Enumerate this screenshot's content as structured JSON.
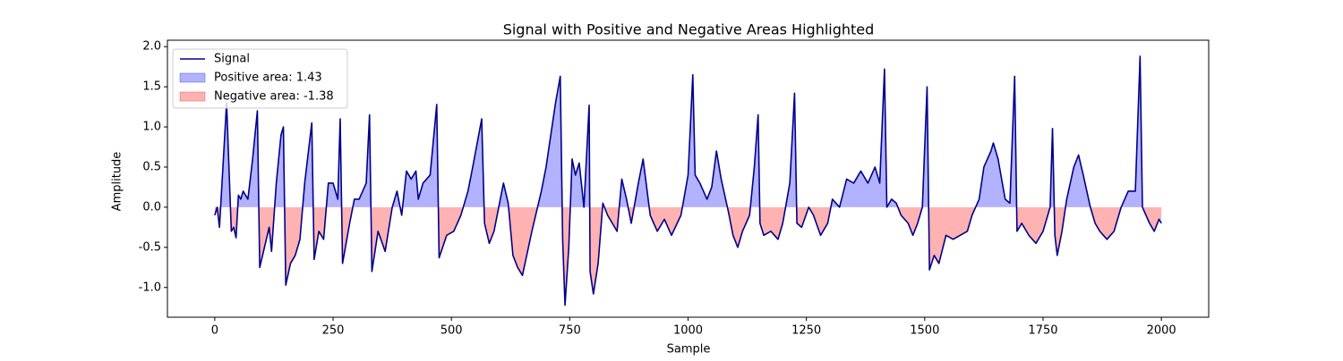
{
  "chart_data": {
    "type": "line",
    "title": "Signal with Positive and Negative Areas Highlighted",
    "x_label": "Sample",
    "y_label": "Amplitude",
    "xlim": [
      -100,
      2100
    ],
    "ylim": [
      -1.37,
      2.08
    ],
    "xticks": [
      0,
      250,
      500,
      750,
      1000,
      1250,
      1500,
      1750,
      2000
    ],
    "yticks": [
      {
        "value": -1.0,
        "label": "-1.0"
      },
      -0.5,
      {
        "value": 0.0,
        "label": "0.0"
      },
      0.5,
      {
        "value": 1.0,
        "label": "1.0"
      },
      1.5,
      {
        "value": 2.0,
        "label": "2.0"
      }
    ],
    "legend": "upper left",
    "x": [
      0,
      5,
      10,
      25,
      30,
      35,
      40,
      45,
      50,
      55,
      60,
      70,
      80,
      90,
      95,
      105,
      115,
      120,
      130,
      140,
      145,
      150,
      160,
      170,
      180,
      190,
      200,
      205,
      210,
      220,
      230,
      240,
      250,
      260,
      265,
      270,
      285,
      295,
      305,
      320,
      327,
      332,
      345,
      360,
      375,
      385,
      395,
      405,
      415,
      425,
      430,
      440,
      455,
      469,
      474,
      490,
      505,
      520,
      535,
      545,
      564,
      570,
      580,
      590,
      610,
      620,
      630,
      640,
      650,
      670,
      690,
      700,
      710,
      720,
      730,
      735,
      740,
      748,
      755,
      762,
      770,
      780,
      791,
      793,
      800,
      810,
      820,
      830,
      840,
      850,
      860,
      870,
      880,
      895,
      905,
      920,
      935,
      950,
      965,
      985,
      1000,
      1010,
      1015,
      1025,
      1040,
      1050,
      1060,
      1070,
      1085,
      1095,
      1105,
      1115,
      1130,
      1140,
      1148,
      1152,
      1160,
      1175,
      1190,
      1200,
      1215,
      1225,
      1230,
      1240,
      1255,
      1265,
      1280,
      1295,
      1305,
      1320,
      1335,
      1350,
      1365,
      1380,
      1395,
      1405,
      1415,
      1420,
      1430,
      1440,
      1450,
      1465,
      1475,
      1485,
      1495,
      1505,
      1510,
      1520,
      1530,
      1545,
      1560,
      1575,
      1590,
      1600,
      1615,
      1625,
      1640,
      1645,
      1655,
      1670,
      1680,
      1690,
      1695,
      1705,
      1720,
      1735,
      1750,
      1765,
      1770,
      1775,
      1780,
      1790,
      1800,
      1815,
      1825,
      1835,
      1850,
      1860,
      1870,
      1885,
      1900,
      1915,
      1930,
      1945,
      1955,
      1960,
      1975,
      1985,
      1995,
      2000
    ],
    "series": [
      {
        "name": "Signal",
        "color": "#00008b",
        "values": [
          -0.1,
          0.0,
          -0.25,
          1.3,
          0.5,
          -0.3,
          -0.25,
          -0.38,
          0.15,
          0.1,
          0.2,
          0.1,
          0.6,
          1.2,
          -0.75,
          -0.5,
          -0.25,
          -0.55,
          0.3,
          0.9,
          1.0,
          -0.97,
          -0.7,
          -0.6,
          -0.4,
          0.3,
          0.8,
          1.05,
          -0.65,
          -0.3,
          -0.4,
          0.3,
          0.3,
          0.1,
          1.1,
          -0.7,
          -0.2,
          0.1,
          0.1,
          0.3,
          1.15,
          -0.8,
          -0.3,
          -0.55,
          0.0,
          0.2,
          -0.1,
          0.45,
          0.35,
          0.45,
          0.1,
          0.3,
          0.4,
          1.28,
          -0.63,
          -0.35,
          -0.3,
          -0.1,
          0.2,
          0.5,
          1.1,
          -0.2,
          -0.45,
          -0.3,
          0.3,
          0.05,
          -0.6,
          -0.75,
          -0.85,
          -0.3,
          0.2,
          0.5,
          0.9,
          1.3,
          1.63,
          -0.4,
          -1.22,
          -0.5,
          0.6,
          0.4,
          0.55,
          0.0,
          1.27,
          -0.8,
          -1.08,
          -0.7,
          0.05,
          -0.1,
          -0.2,
          -0.3,
          0.35,
          0.1,
          -0.2,
          0.3,
          0.6,
          -0.1,
          -0.3,
          -0.15,
          -0.35,
          -0.1,
          0.4,
          1.65,
          0.4,
          0.3,
          0.1,
          0.25,
          0.7,
          0.35,
          -0.05,
          -0.35,
          -0.5,
          -0.3,
          -0.1,
          0.5,
          1.15,
          -0.2,
          -0.35,
          -0.3,
          -0.4,
          -0.2,
          0.3,
          1.42,
          -0.2,
          -0.25,
          0.0,
          -0.1,
          -0.35,
          -0.2,
          0.1,
          0.0,
          0.35,
          0.3,
          0.45,
          0.3,
          0.5,
          0.3,
          1.72,
          0.0,
          0.1,
          0.05,
          -0.1,
          -0.2,
          -0.35,
          -0.2,
          0.0,
          1.5,
          -0.78,
          -0.6,
          -0.7,
          -0.35,
          -0.4,
          -0.35,
          -0.3,
          -0.1,
          0.1,
          0.5,
          0.7,
          0.8,
          0.6,
          0.1,
          0.05,
          1.63,
          -0.3,
          -0.2,
          -0.35,
          -0.45,
          -0.3,
          0.0,
          0.98,
          -0.35,
          -0.6,
          -0.3,
          0.1,
          0.5,
          0.65,
          0.4,
          0.0,
          -0.2,
          -0.3,
          -0.4,
          -0.3,
          0.0,
          0.2,
          0.2,
          1.88,
          0.0,
          -0.2,
          -0.3,
          -0.15,
          -0.2
        ]
      }
    ],
    "fills": [
      {
        "name": "Positive area: 1.43",
        "color": "#0000ff",
        "side": "positive"
      },
      {
        "name": "Negative area: -1.38",
        "color": "#ff0000",
        "side": "negative"
      }
    ]
  }
}
